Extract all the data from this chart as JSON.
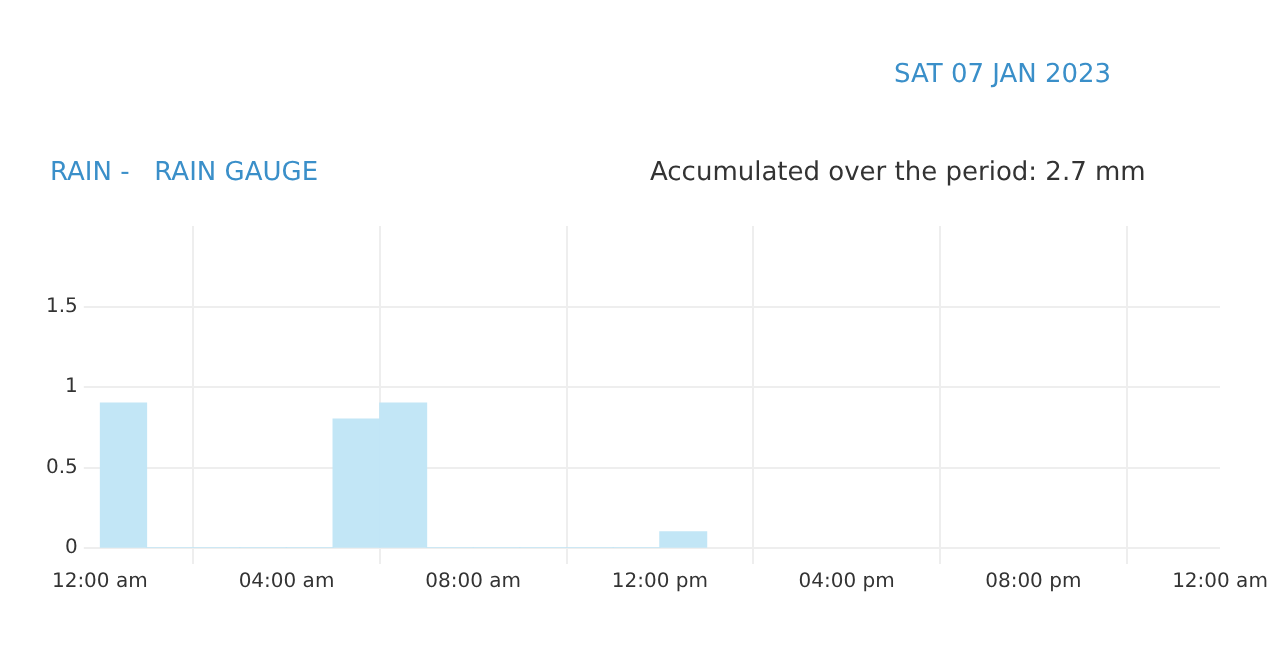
{
  "chart_data": {
    "type": "histogram",
    "title": "RAIN -   RAIN GAUGE",
    "subtitle": "Accumulated over the period: 2.7 mm",
    "annotations": [
      "SAT 07 JAN 2023"
    ],
    "bins": [
      0,
      1,
      2,
      3,
      4,
      5,
      6,
      7,
      8,
      9,
      10,
      11,
      12,
      13
    ],
    "values": [
      0.9,
      0,
      0,
      0,
      0,
      0.8,
      0.9,
      0,
      0,
      0,
      0,
      0,
      0.1
    ],
    "color": "#c2e6f6",
    "xlim": [
      0,
      24
    ],
    "xticks": [
      {
        "value": 0,
        "label": "12:00 am"
      },
      {
        "value": 4,
        "label": "04:00 am"
      },
      {
        "value": 8,
        "label": "08:00 am"
      },
      {
        "value": 12,
        "label": "12:00 pm"
      },
      {
        "value": 16,
        "label": "04:00 pm"
      },
      {
        "value": 20,
        "label": "08:00 pm"
      },
      {
        "value": 24,
        "label": "12:00 am"
      }
    ],
    "ylim": [
      0,
      2
    ],
    "yticks": [
      0,
      0.5,
      1,
      1.5
    ],
    "grid": true,
    "legend": false
  }
}
